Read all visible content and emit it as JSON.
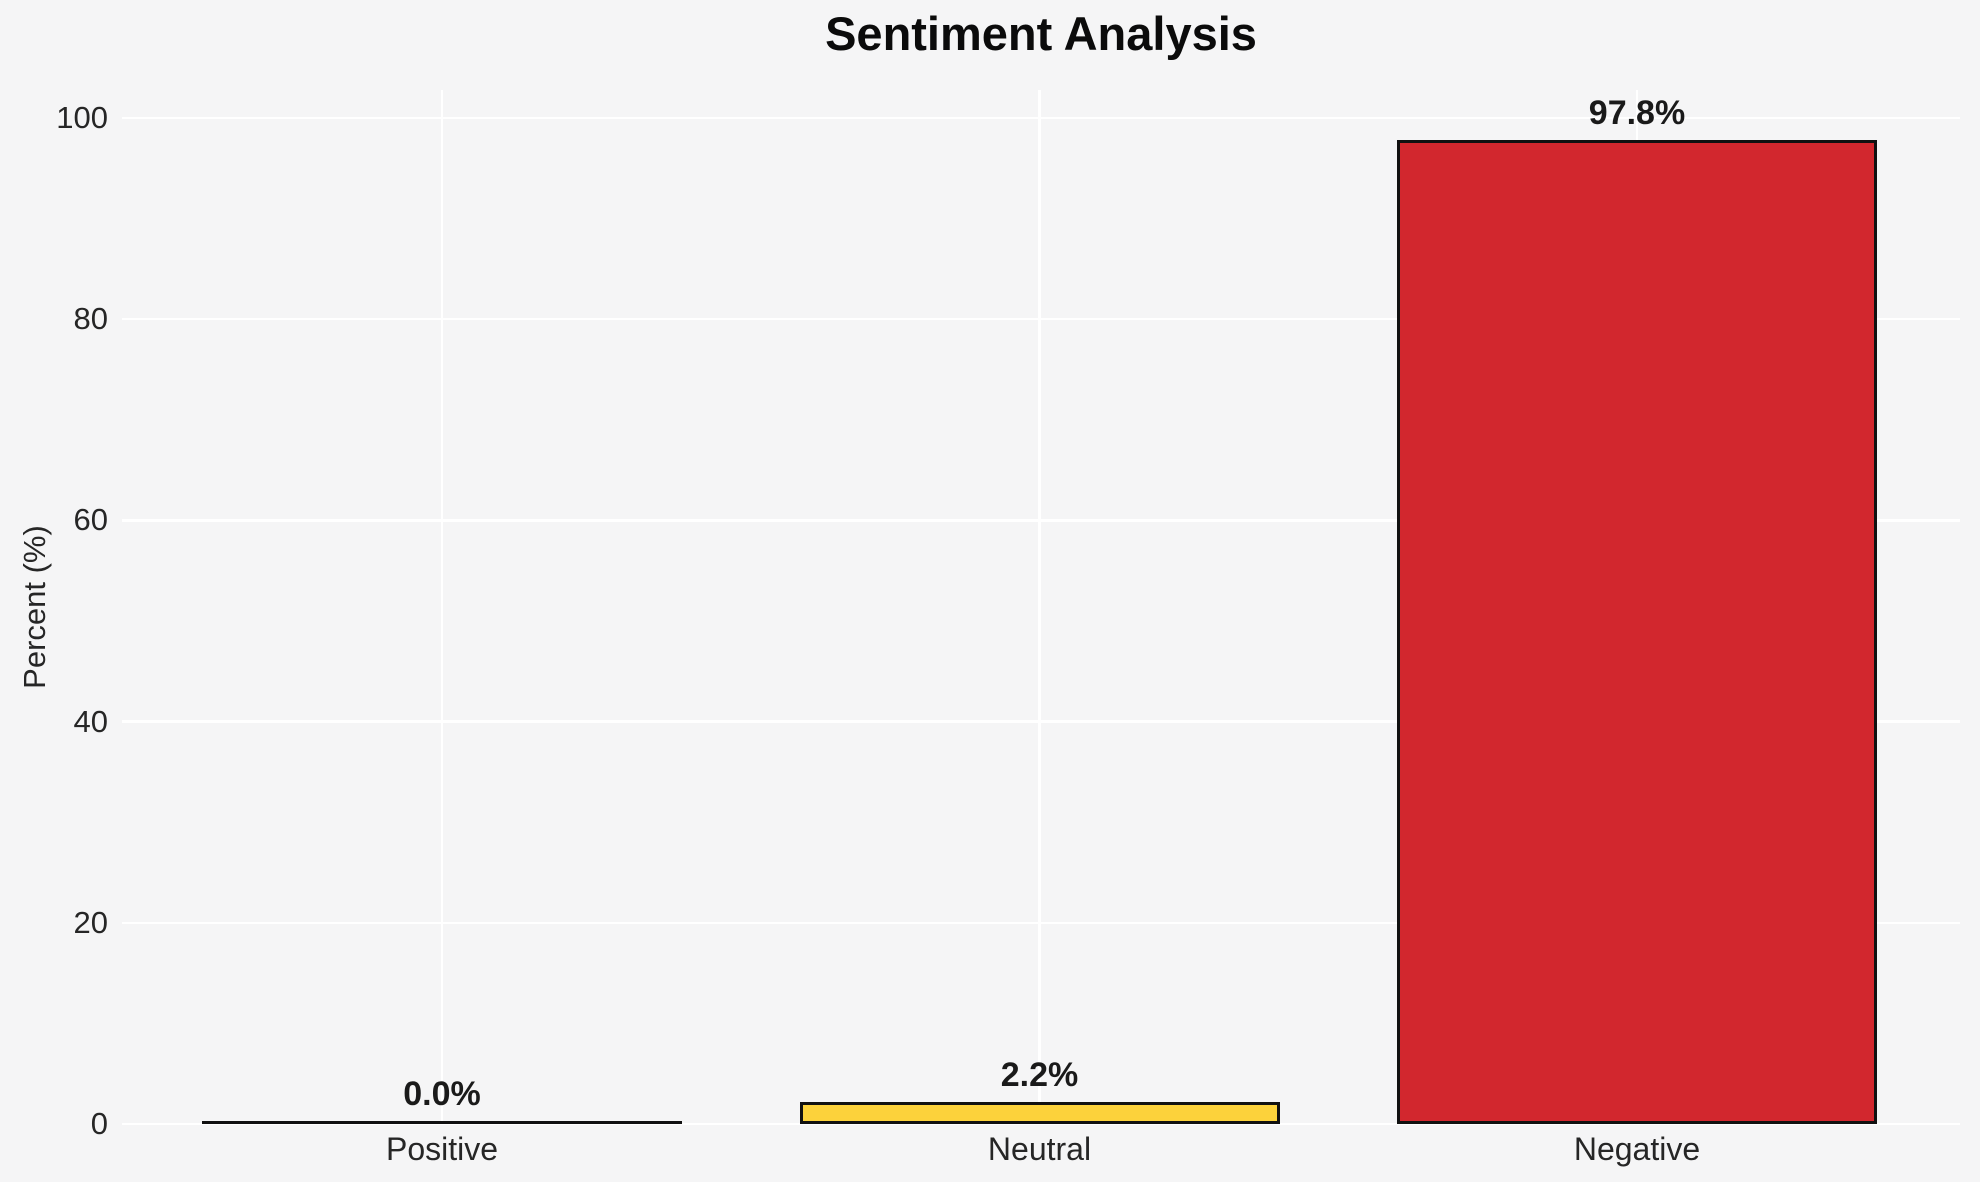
{
  "chart_data": {
    "type": "bar",
    "title": "Sentiment Analysis",
    "ylabel": "Percent (%)",
    "xlabel": "",
    "categories": [
      "Positive",
      "Neutral",
      "Negative"
    ],
    "values": [
      0.0,
      2.2,
      97.8
    ],
    "value_labels": [
      "0.0%",
      "2.2%",
      "97.8%"
    ],
    "bar_colors": [
      "#111111",
      "#FCD23B",
      "#D2272E"
    ],
    "bar_edge_color": "#111111",
    "yticks": [
      0,
      20,
      40,
      60,
      80,
      100
    ],
    "ytick_labels": [
      "0",
      "20",
      "40",
      "60",
      "80",
      "100"
    ],
    "ylim": [
      0,
      102.8
    ],
    "grid": true,
    "legend": false,
    "background_color": "#F5F5F6",
    "gridline_color": "#FFFFFF"
  }
}
